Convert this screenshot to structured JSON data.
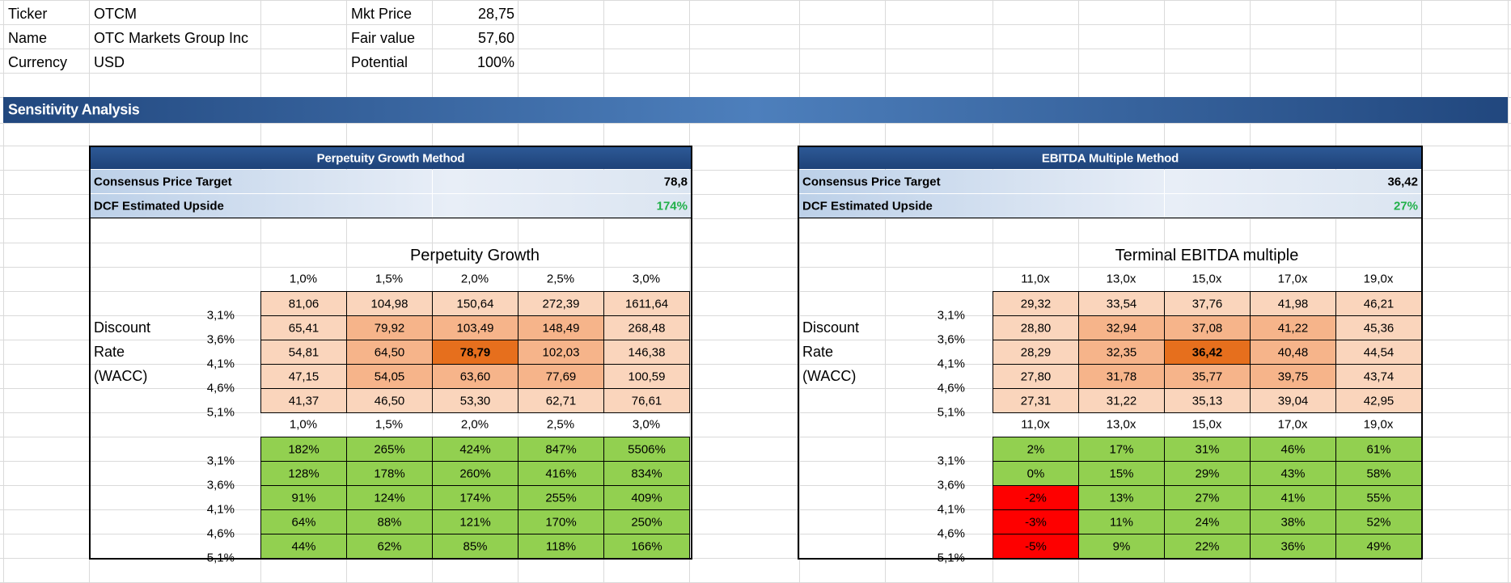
{
  "info": {
    "ticker_label": "Ticker",
    "ticker": "OTCM",
    "name_label": "Name",
    "name": "OTC Markets Group Inc",
    "currency_label": "Currency",
    "currency": "USD",
    "mkt_price_label": "Mkt Price",
    "mkt_price": "28,75",
    "fair_value_label": "Fair value",
    "fair_value": "57,60",
    "potential_label": "Potential",
    "potential": "100%"
  },
  "section_title": "Sensitivity Analysis",
  "colors": {
    "banner": "#21477e",
    "header": "#1e4278",
    "light": "#fad5bc",
    "mid": "#f6b48a",
    "strong": "#e66f1d",
    "green": "#92d050",
    "red": "#fe0000",
    "upside_text": "#21b04a"
  },
  "panels": [
    {
      "header": "Perpetuity Growth Method",
      "consensus_label": "Consensus Price Target",
      "consensus_value": "78,8",
      "upside_label": "DCF Estimated Upside",
      "upside_value": "174%",
      "axis_title": "Perpetuity Growth",
      "row_label": [
        "Discount",
        "Rate",
        "(WACC)"
      ],
      "cols": [
        "1,0%",
        "1,5%",
        "2,0%",
        "2,5%",
        "3,0%"
      ],
      "rows": [
        "3,1%",
        "3,6%",
        "4,1%",
        "4,6%",
        "5,1%"
      ],
      "values": [
        [
          "81,06",
          "104,98",
          "150,64",
          "272,39",
          "1611,64"
        ],
        [
          "65,41",
          "79,92",
          "103,49",
          "148,49",
          "268,48"
        ],
        [
          "54,81",
          "64,50",
          "78,79",
          "102,03",
          "146,38"
        ],
        [
          "47,15",
          "54,05",
          "63,60",
          "77,69",
          "100,59"
        ],
        [
          "41,37",
          "46,50",
          "53,30",
          "62,71",
          "76,61"
        ]
      ],
      "upside": [
        [
          "182%",
          "265%",
          "424%",
          "847%",
          "5506%"
        ],
        [
          "128%",
          "178%",
          "260%",
          "416%",
          "834%"
        ],
        [
          "91%",
          "124%",
          "174%",
          "255%",
          "409%"
        ],
        [
          "64%",
          "88%",
          "121%",
          "170%",
          "250%"
        ],
        [
          "44%",
          "62%",
          "85%",
          "118%",
          "166%"
        ]
      ]
    },
    {
      "header": "EBITDA Multiple Method",
      "consensus_label": "Consensus Price Target",
      "consensus_value": "36,42",
      "upside_label": "DCF Estimated Upside",
      "upside_value": "27%",
      "axis_title": "Terminal EBITDA multiple",
      "row_label": [
        "Discount",
        "Rate",
        "(WACC)"
      ],
      "cols": [
        "11,0x",
        "13,0x",
        "15,0x",
        "17,0x",
        "19,0x"
      ],
      "rows": [
        "3,1%",
        "3,6%",
        "4,1%",
        "4,6%",
        "5,1%"
      ],
      "values": [
        [
          "29,32",
          "33,54",
          "37,76",
          "41,98",
          "46,21"
        ],
        [
          "28,80",
          "32,94",
          "37,08",
          "41,22",
          "45,36"
        ],
        [
          "28,29",
          "32,35",
          "36,42",
          "40,48",
          "44,54"
        ],
        [
          "27,80",
          "31,78",
          "35,77",
          "39,75",
          "43,74"
        ],
        [
          "27,31",
          "31,22",
          "35,13",
          "39,04",
          "42,95"
        ]
      ],
      "upside": [
        [
          "2%",
          "17%",
          "31%",
          "46%",
          "61%"
        ],
        [
          "0%",
          "15%",
          "29%",
          "43%",
          "58%"
        ],
        [
          "-2%",
          "13%",
          "27%",
          "41%",
          "55%"
        ],
        [
          "-3%",
          "11%",
          "24%",
          "38%",
          "52%"
        ],
        [
          "-5%",
          "9%",
          "22%",
          "36%",
          "49%"
        ]
      ]
    }
  ]
}
